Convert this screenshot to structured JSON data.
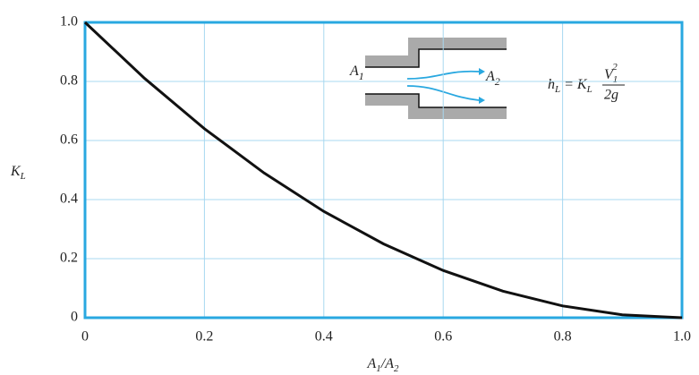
{
  "chart_data": {
    "type": "line",
    "x": [
      0,
      0.1,
      0.2,
      0.3,
      0.4,
      0.5,
      0.6,
      0.7,
      0.8,
      0.9,
      1.0
    ],
    "series": [
      {
        "color": "#111111",
        "values": [
          1,
          0.81,
          0.64,
          0.49,
          0.36,
          0.25,
          0.16,
          0.09,
          0.04,
          0.01,
          0
        ]
      }
    ],
    "xlim": [
      0,
      1
    ],
    "ylim": [
      0,
      1
    ],
    "xticks": [
      0,
      0.2,
      0.4,
      0.6,
      0.8,
      {
        "value": 1,
        "label": "1.0"
      }
    ],
    "yticks": [
      0,
      0.2,
      0.4,
      0.6,
      0.8,
      {
        "value": 1,
        "label": "1.0"
      }
    ],
    "grid": true,
    "xlabel": [
      "A",
      "1",
      "/A",
      "2"
    ],
    "ylabel": [
      "K",
      "L"
    ],
    "annotations": {
      "inlet": [
        "A",
        "1"
      ],
      "outlet": [
        "A",
        "2"
      ],
      "formula": [
        "h",
        "L",
        " = K",
        "L",
        "V",
        "1",
        "2",
        "2g"
      ]
    }
  }
}
